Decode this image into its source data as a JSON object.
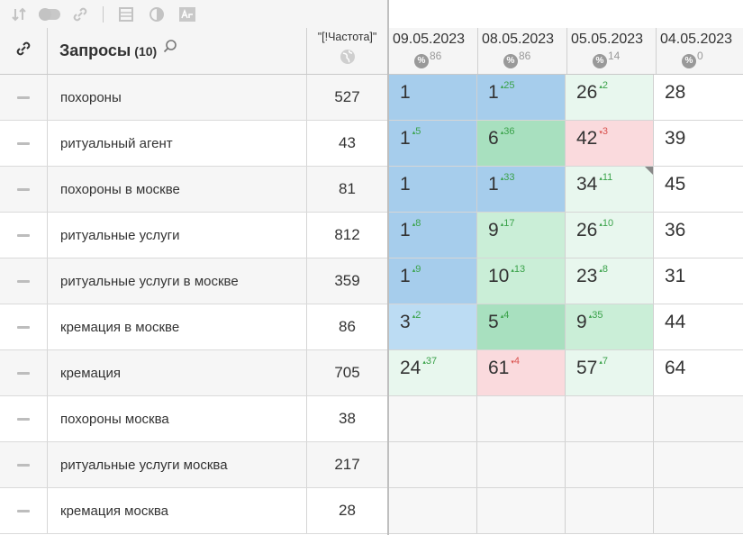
{
  "toolbar": {
    "icons": [
      "sort-icon",
      "toggle-icon",
      "link-icon",
      "table-icon",
      "contrast-icon",
      "text-size-icon"
    ]
  },
  "header": {
    "link_icon": "link-icon",
    "queries_title": "Запросы",
    "queries_count": "(10)",
    "search_icon": "search-icon",
    "freq_label": "\"[!Частота]\"",
    "globe_icon": "globe-icon"
  },
  "dates": [
    {
      "date": "09.05.2023",
      "pct_symbol": "%",
      "pct_value": "86"
    },
    {
      "date": "08.05.2023",
      "pct_symbol": "%",
      "pct_value": "86"
    },
    {
      "date": "05.05.2023",
      "pct_symbol": "%",
      "pct_value": "14"
    },
    {
      "date": "04.05.2023",
      "pct_symbol": "%",
      "pct_value": "0"
    }
  ],
  "rows": [
    {
      "query": "похороны",
      "freq": "527",
      "cells": [
        {
          "pos": "1",
          "delta": "",
          "dir": "",
          "bg": "blue"
        },
        {
          "pos": "1",
          "delta": "25",
          "dir": "up",
          "bg": "blue"
        },
        {
          "pos": "26",
          "delta": "2",
          "dir": "up",
          "bg": "pale"
        },
        {
          "pos": "28",
          "delta": "",
          "dir": "",
          "bg": "white"
        }
      ]
    },
    {
      "query": "ритуальный агент",
      "freq": "43",
      "cells": [
        {
          "pos": "1",
          "delta": "5",
          "dir": "up",
          "bg": "blue"
        },
        {
          "pos": "6",
          "delta": "36",
          "dir": "up",
          "bg": "green"
        },
        {
          "pos": "42",
          "delta": "3",
          "dir": "down",
          "bg": "red"
        },
        {
          "pos": "39",
          "delta": "",
          "dir": "",
          "bg": "white"
        }
      ]
    },
    {
      "query": "похороны в москве",
      "freq": "81",
      "cells": [
        {
          "pos": "1",
          "delta": "",
          "dir": "",
          "bg": "blue"
        },
        {
          "pos": "1",
          "delta": "33",
          "dir": "up",
          "bg": "blue"
        },
        {
          "pos": "34",
          "delta": "11",
          "dir": "up",
          "bg": "pale",
          "corner": true
        },
        {
          "pos": "45",
          "delta": "",
          "dir": "",
          "bg": "white"
        }
      ]
    },
    {
      "query": "ритуальные услуги",
      "freq": "812",
      "cells": [
        {
          "pos": "1",
          "delta": "8",
          "dir": "up",
          "bg": "blue"
        },
        {
          "pos": "9",
          "delta": "17",
          "dir": "up",
          "bg": "lgreen"
        },
        {
          "pos": "26",
          "delta": "10",
          "dir": "up",
          "bg": "pale"
        },
        {
          "pos": "36",
          "delta": "",
          "dir": "",
          "bg": "white"
        }
      ]
    },
    {
      "query": "ритуальные услуги в москве",
      "freq": "359",
      "cells": [
        {
          "pos": "1",
          "delta": "9",
          "dir": "up",
          "bg": "blue"
        },
        {
          "pos": "10",
          "delta": "13",
          "dir": "up",
          "bg": "lgreen"
        },
        {
          "pos": "23",
          "delta": "8",
          "dir": "up",
          "bg": "pale"
        },
        {
          "pos": "31",
          "delta": "",
          "dir": "",
          "bg": "white"
        }
      ]
    },
    {
      "query": "кремация в москве",
      "freq": "86",
      "cells": [
        {
          "pos": "3",
          "delta": "2",
          "dir": "up",
          "bg": "lblue"
        },
        {
          "pos": "5",
          "delta": "4",
          "dir": "up",
          "bg": "green"
        },
        {
          "pos": "9",
          "delta": "35",
          "dir": "up",
          "bg": "lgreen"
        },
        {
          "pos": "44",
          "delta": "",
          "dir": "",
          "bg": "white"
        }
      ]
    },
    {
      "query": "кремация",
      "freq": "705",
      "cells": [
        {
          "pos": "24",
          "delta": "37",
          "dir": "up",
          "bg": "pale"
        },
        {
          "pos": "61",
          "delta": "4",
          "dir": "down",
          "bg": "red"
        },
        {
          "pos": "57",
          "delta": "7",
          "dir": "up",
          "bg": "pale"
        },
        {
          "pos": "64",
          "delta": "",
          "dir": "",
          "bg": "white"
        }
      ]
    },
    {
      "query": "похороны москва",
      "freq": "38",
      "cells": [
        {
          "pos": "",
          "delta": "",
          "dir": "",
          "bg": "empty"
        },
        {
          "pos": "",
          "delta": "",
          "dir": "",
          "bg": "empty"
        },
        {
          "pos": "",
          "delta": "",
          "dir": "",
          "bg": "empty"
        },
        {
          "pos": "",
          "delta": "",
          "dir": "",
          "bg": "empty"
        }
      ]
    },
    {
      "query": "ритуальные услуги москва",
      "freq": "217",
      "cells": [
        {
          "pos": "",
          "delta": "",
          "dir": "",
          "bg": "empty"
        },
        {
          "pos": "",
          "delta": "",
          "dir": "",
          "bg": "empty"
        },
        {
          "pos": "",
          "delta": "",
          "dir": "",
          "bg": "empty"
        },
        {
          "pos": "",
          "delta": "",
          "dir": "",
          "bg": "empty"
        }
      ]
    },
    {
      "query": "кремация москва",
      "freq": "28",
      "cells": [
        {
          "pos": "",
          "delta": "",
          "dir": "",
          "bg": "empty"
        },
        {
          "pos": "",
          "delta": "",
          "dir": "",
          "bg": "empty"
        },
        {
          "pos": "",
          "delta": "",
          "dir": "",
          "bg": "empty"
        },
        {
          "pos": "",
          "delta": "",
          "dir": "",
          "bg": "empty"
        }
      ]
    }
  ],
  "colors": {
    "blue": "#a6cdec",
    "lblue": "#bcdcf3",
    "green": "#a8e0bf",
    "lgreen": "#caeed7",
    "pale": "#e8f7ee",
    "red": "#fadadd",
    "delta_up": "#3aa24a",
    "delta_down": "#d9534f"
  }
}
